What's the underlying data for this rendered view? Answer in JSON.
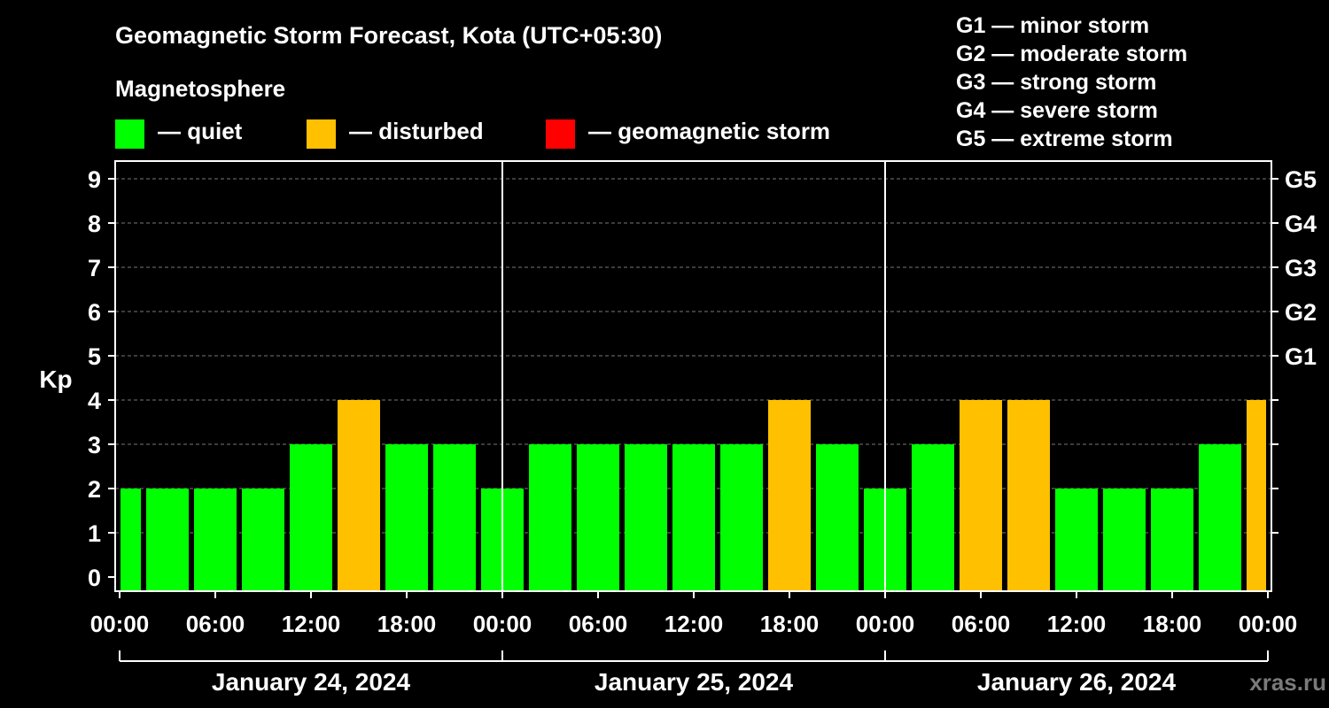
{
  "chart_data": {
    "type": "bar",
    "title": "Geomagnetic Storm Forecast, Kota (UTC+05:30)",
    "legend_title": "Magnetosphere",
    "legend": [
      {
        "label": "— quiet",
        "color": "#00ff00"
      },
      {
        "label": "— disturbed",
        "color": "#ffc000"
      },
      {
        "label": "— geomagnetic storm",
        "color": "#ff0000"
      }
    ],
    "storm_scale": [
      "G1 — minor storm",
      "G2 — moderate storm",
      "G3 — strong storm",
      "G4 — severe storm",
      "G5 — extreme storm"
    ],
    "ylabel": "Kp",
    "ylim": [
      0,
      9
    ],
    "y_ticks": [
      "0",
      "1",
      "2",
      "3",
      "4",
      "5",
      "6",
      "7",
      "8",
      "9"
    ],
    "right_ticks": [
      {
        "kp": 5,
        "label": "G1"
      },
      {
        "kp": 6,
        "label": "G2"
      },
      {
        "kp": 7,
        "label": "G3"
      },
      {
        "kp": 8,
        "label": "G4"
      },
      {
        "kp": 9,
        "label": "G5"
      }
    ],
    "x_ticks": [
      "00:00",
      "06:00",
      "12:00",
      "18:00",
      "00:00",
      "06:00",
      "12:00",
      "18:00",
      "00:00",
      "06:00",
      "12:00",
      "18:00",
      "00:00"
    ],
    "days": [
      "January 24, 2024",
      "January 25, 2024",
      "January 26, 2024"
    ],
    "interval_hours": 3,
    "values": [
      2,
      2,
      2,
      2,
      3,
      4,
      3,
      3,
      2,
      3,
      3,
      3,
      3,
      3,
      4,
      3,
      2,
      3,
      4,
      4,
      2,
      2,
      2,
      3,
      4
    ],
    "status": [
      "quiet",
      "quiet",
      "quiet",
      "quiet",
      "quiet",
      "disturbed",
      "quiet",
      "quiet",
      "quiet",
      "quiet",
      "quiet",
      "quiet",
      "quiet",
      "quiet",
      "disturbed",
      "quiet",
      "quiet",
      "quiet",
      "disturbed",
      "disturbed",
      "quiet",
      "quiet",
      "quiet",
      "quiet",
      "disturbed"
    ],
    "colors": {
      "quiet": "#00ff00",
      "disturbed": "#ffc000",
      "storm": "#ff0000"
    },
    "grid": true
  },
  "watermark": "xras.ru"
}
